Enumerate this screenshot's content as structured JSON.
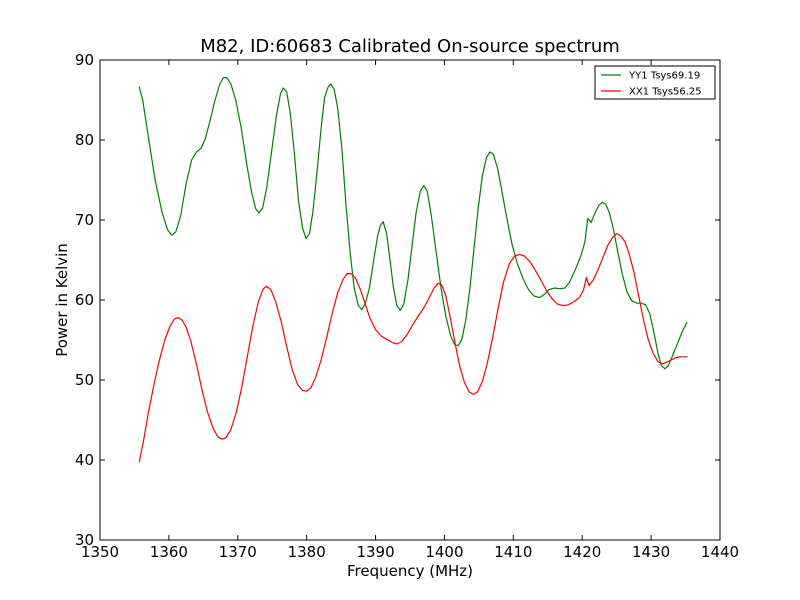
{
  "chart_data": {
    "type": "line",
    "title": "M82, ID:60683 Calibrated On-source spectrum",
    "xlabel": "Frequency (MHz)",
    "ylabel": "Power in Kelvin",
    "xlim": [
      1350,
      1440
    ],
    "ylim": [
      30,
      90
    ],
    "xticks": [
      "1350",
      "1360",
      "1370",
      "1380",
      "1390",
      "1400",
      "1410",
      "1420",
      "1430",
      "1440"
    ],
    "yticks": [
      "30",
      "40",
      "50",
      "60",
      "70",
      "80",
      "90"
    ],
    "grid": false,
    "legend_position": "top-right",
    "series": [
      {
        "name": "YY1 Tsys69.19",
        "color": "#008000",
        "points": [
          [
            1355.7,
            86.6
          ],
          [
            1356.2,
            85.0
          ],
          [
            1357.0,
            80.5
          ],
          [
            1358.0,
            75.0
          ],
          [
            1359.0,
            71.0
          ],
          [
            1359.8,
            68.8
          ],
          [
            1360.4,
            68.1
          ],
          [
            1361.0,
            68.5
          ],
          [
            1361.7,
            70.5
          ],
          [
            1362.5,
            74.5
          ],
          [
            1363.3,
            77.5
          ],
          [
            1364.0,
            78.5
          ],
          [
            1364.7,
            79.0
          ],
          [
            1365.3,
            80.2
          ],
          [
            1366.0,
            82.5
          ],
          [
            1366.7,
            85.0
          ],
          [
            1367.4,
            87.0
          ],
          [
            1367.9,
            87.8
          ],
          [
            1368.4,
            87.8
          ],
          [
            1369.0,
            87.0
          ],
          [
            1369.7,
            85.0
          ],
          [
            1370.5,
            81.5
          ],
          [
            1371.3,
            77.0
          ],
          [
            1372.0,
            73.5
          ],
          [
            1372.6,
            71.4
          ],
          [
            1373.1,
            70.9
          ],
          [
            1373.6,
            71.5
          ],
          [
            1374.2,
            74.0
          ],
          [
            1374.9,
            78.5
          ],
          [
            1375.6,
            83.0
          ],
          [
            1376.2,
            85.8
          ],
          [
            1376.6,
            86.5
          ],
          [
            1377.1,
            86.0
          ],
          [
            1377.6,
            83.5
          ],
          [
            1378.2,
            78.5
          ],
          [
            1378.8,
            72.5
          ],
          [
            1379.4,
            69.0
          ],
          [
            1379.9,
            67.7
          ],
          [
            1380.4,
            68.3
          ],
          [
            1380.9,
            71.0
          ],
          [
            1381.5,
            76.0
          ],
          [
            1382.1,
            81.5
          ],
          [
            1382.6,
            85.3
          ],
          [
            1383.1,
            86.6
          ],
          [
            1383.5,
            87.0
          ],
          [
            1384.0,
            86.3
          ],
          [
            1384.5,
            84.0
          ],
          [
            1385.1,
            79.0
          ],
          [
            1385.7,
            72.0
          ],
          [
            1386.3,
            66.0
          ],
          [
            1386.9,
            61.5
          ],
          [
            1387.5,
            59.3
          ],
          [
            1388.0,
            58.8
          ],
          [
            1388.5,
            59.5
          ],
          [
            1389.1,
            61.5
          ],
          [
            1389.7,
            64.8
          ],
          [
            1390.3,
            68.0
          ],
          [
            1390.7,
            69.3
          ],
          [
            1391.1,
            69.8
          ],
          [
            1391.6,
            68.3
          ],
          [
            1392.1,
            65.0
          ],
          [
            1392.6,
            61.5
          ],
          [
            1393.1,
            59.3
          ],
          [
            1393.6,
            58.7
          ],
          [
            1394.1,
            59.5
          ],
          [
            1394.7,
            62.5
          ],
          [
            1395.3,
            66.8
          ],
          [
            1395.9,
            71.0
          ],
          [
            1396.5,
            73.6
          ],
          [
            1397.0,
            74.3
          ],
          [
            1397.5,
            73.6
          ],
          [
            1398.1,
            70.5
          ],
          [
            1398.8,
            66.0
          ],
          [
            1399.5,
            61.5
          ],
          [
            1400.2,
            58.0
          ],
          [
            1400.9,
            55.5
          ],
          [
            1401.5,
            54.4
          ],
          [
            1402.0,
            54.3
          ],
          [
            1402.5,
            55.0
          ],
          [
            1403.1,
            57.5
          ],
          [
            1403.7,
            61.5
          ],
          [
            1404.3,
            66.5
          ],
          [
            1404.9,
            71.5
          ],
          [
            1405.5,
            75.5
          ],
          [
            1406.1,
            77.8
          ],
          [
            1406.6,
            78.5
          ],
          [
            1407.1,
            78.2
          ],
          [
            1407.7,
            76.5
          ],
          [
            1408.3,
            73.8
          ],
          [
            1409.0,
            70.5
          ],
          [
            1409.8,
            67.0
          ],
          [
            1410.6,
            64.5
          ],
          [
            1411.4,
            62.7
          ],
          [
            1412.2,
            61.3
          ],
          [
            1413.0,
            60.5
          ],
          [
            1413.8,
            60.3
          ],
          [
            1414.5,
            60.7
          ],
          [
            1415.2,
            61.3
          ],
          [
            1416.0,
            61.5
          ],
          [
            1416.8,
            61.4
          ],
          [
            1417.5,
            61.5
          ],
          [
            1418.2,
            62.3
          ],
          [
            1419.0,
            63.8
          ],
          [
            1419.8,
            65.5
          ],
          [
            1420.4,
            67.3
          ],
          [
            1420.8,
            70.2
          ],
          [
            1421.3,
            69.7
          ],
          [
            1421.8,
            70.8
          ],
          [
            1422.4,
            71.8
          ],
          [
            1422.9,
            72.2
          ],
          [
            1423.4,
            72.0
          ],
          [
            1423.9,
            71.0
          ],
          [
            1424.5,
            69.0
          ],
          [
            1425.1,
            66.3
          ],
          [
            1425.8,
            63.3
          ],
          [
            1426.5,
            61.0
          ],
          [
            1427.2,
            59.9
          ],
          [
            1427.9,
            59.6
          ],
          [
            1428.6,
            59.6
          ],
          [
            1429.2,
            59.4
          ],
          [
            1429.8,
            58.3
          ],
          [
            1430.4,
            56.0
          ],
          [
            1431.0,
            53.3
          ],
          [
            1431.5,
            51.8
          ],
          [
            1432.0,
            51.4
          ],
          [
            1432.5,
            51.8
          ],
          [
            1433.1,
            53.0
          ],
          [
            1433.8,
            54.5
          ],
          [
            1434.5,
            56.0
          ],
          [
            1435.2,
            57.2
          ]
        ]
      },
      {
        "name": "XX1 Tsys56.25",
        "color": "#ff0000",
        "points": [
          [
            1355.7,
            39.8
          ],
          [
            1356.3,
            42.3
          ],
          [
            1357.0,
            45.8
          ],
          [
            1357.8,
            49.3
          ],
          [
            1358.6,
            52.4
          ],
          [
            1359.4,
            55.0
          ],
          [
            1360.2,
            56.8
          ],
          [
            1360.8,
            57.6
          ],
          [
            1361.3,
            57.8
          ],
          [
            1361.9,
            57.5
          ],
          [
            1362.5,
            56.6
          ],
          [
            1363.2,
            54.8
          ],
          [
            1364.0,
            52.0
          ],
          [
            1364.8,
            48.8
          ],
          [
            1365.6,
            46.0
          ],
          [
            1366.4,
            44.0
          ],
          [
            1367.1,
            42.9
          ],
          [
            1367.7,
            42.6
          ],
          [
            1368.3,
            42.8
          ],
          [
            1369.0,
            43.8
          ],
          [
            1369.8,
            46.0
          ],
          [
            1370.6,
            49.2
          ],
          [
            1371.4,
            53.0
          ],
          [
            1372.2,
            56.8
          ],
          [
            1373.0,
            59.8
          ],
          [
            1373.7,
            61.4
          ],
          [
            1374.2,
            61.7
          ],
          [
            1374.8,
            61.3
          ],
          [
            1375.5,
            59.8
          ],
          [
            1376.3,
            57.3
          ],
          [
            1377.1,
            54.2
          ],
          [
            1377.9,
            51.3
          ],
          [
            1378.7,
            49.4
          ],
          [
            1379.4,
            48.7
          ],
          [
            1380.0,
            48.6
          ],
          [
            1380.6,
            49.0
          ],
          [
            1381.3,
            50.3
          ],
          [
            1382.1,
            52.5
          ],
          [
            1382.9,
            55.3
          ],
          [
            1383.7,
            58.3
          ],
          [
            1384.5,
            60.9
          ],
          [
            1385.3,
            62.6
          ],
          [
            1385.9,
            63.3
          ],
          [
            1386.5,
            63.3
          ],
          [
            1387.1,
            62.7
          ],
          [
            1387.8,
            61.3
          ],
          [
            1388.5,
            59.5
          ],
          [
            1389.2,
            57.7
          ],
          [
            1390.0,
            56.3
          ],
          [
            1390.8,
            55.5
          ],
          [
            1391.6,
            55.1
          ],
          [
            1392.4,
            54.7
          ],
          [
            1393.1,
            54.5
          ],
          [
            1393.8,
            54.8
          ],
          [
            1394.6,
            55.7
          ],
          [
            1395.4,
            56.9
          ],
          [
            1396.2,
            58.0
          ],
          [
            1397.0,
            59.0
          ],
          [
            1397.8,
            60.3
          ],
          [
            1398.5,
            61.5
          ],
          [
            1399.1,
            62.1
          ],
          [
            1399.6,
            61.9
          ],
          [
            1400.2,
            60.5
          ],
          [
            1400.8,
            58.0
          ],
          [
            1401.5,
            54.8
          ],
          [
            1402.2,
            51.8
          ],
          [
            1402.9,
            49.7
          ],
          [
            1403.6,
            48.5
          ],
          [
            1404.2,
            48.2
          ],
          [
            1404.8,
            48.5
          ],
          [
            1405.5,
            49.8
          ],
          [
            1406.2,
            52.0
          ],
          [
            1407.0,
            55.3
          ],
          [
            1407.8,
            59.0
          ],
          [
            1408.6,
            62.3
          ],
          [
            1409.4,
            64.5
          ],
          [
            1410.2,
            65.5
          ],
          [
            1410.9,
            65.7
          ],
          [
            1411.6,
            65.5
          ],
          [
            1412.4,
            64.8
          ],
          [
            1413.2,
            63.7
          ],
          [
            1414.0,
            62.5
          ],
          [
            1414.8,
            61.2
          ],
          [
            1415.6,
            60.2
          ],
          [
            1416.4,
            59.5
          ],
          [
            1417.2,
            59.3
          ],
          [
            1418.0,
            59.4
          ],
          [
            1418.8,
            59.8
          ],
          [
            1419.6,
            60.3
          ],
          [
            1420.2,
            61.3
          ],
          [
            1420.6,
            62.8
          ],
          [
            1421.0,
            61.8
          ],
          [
            1421.6,
            62.5
          ],
          [
            1422.3,
            63.8
          ],
          [
            1423.0,
            65.3
          ],
          [
            1423.7,
            66.8
          ],
          [
            1424.4,
            67.8
          ],
          [
            1425.0,
            68.3
          ],
          [
            1425.6,
            68.0
          ],
          [
            1426.2,
            67.3
          ],
          [
            1426.8,
            65.8
          ],
          [
            1427.5,
            63.5
          ],
          [
            1428.2,
            60.5
          ],
          [
            1428.9,
            57.5
          ],
          [
            1429.6,
            55.0
          ],
          [
            1430.3,
            53.3
          ],
          [
            1431.0,
            52.3
          ],
          [
            1431.6,
            52.0
          ],
          [
            1432.2,
            52.2
          ],
          [
            1432.9,
            52.5
          ],
          [
            1433.6,
            52.8
          ],
          [
            1434.3,
            52.9
          ],
          [
            1435.2,
            52.9
          ]
        ]
      }
    ]
  }
}
